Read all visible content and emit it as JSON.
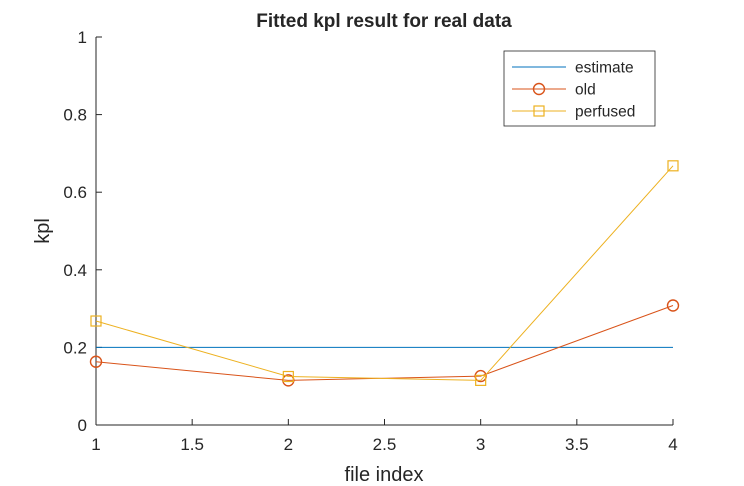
{
  "chart_data": {
    "type": "line",
    "title": "Fitted kpl result for real data",
    "xlabel": "file index",
    "ylabel": "kpl",
    "xlim": [
      1,
      4
    ],
    "ylim": [
      0,
      1
    ],
    "x_ticks": [
      1,
      1.5,
      2,
      2.5,
      3,
      3.5,
      4
    ],
    "x_tick_labels": [
      "1",
      "1.5",
      "2",
      "2.5",
      "3",
      "3.5",
      "4"
    ],
    "y_ticks": [
      0,
      0.2,
      0.4,
      0.6,
      0.8,
      1
    ],
    "y_tick_labels": [
      "0",
      "0.2",
      "0.4",
      "0.6",
      "0.8",
      "1"
    ],
    "grid": false,
    "legend_position": "top-right",
    "x": [
      1,
      2,
      3,
      4
    ],
    "series": [
      {
        "name": "estimate",
        "color": "#0072BD",
        "marker": "none",
        "values": [
          0.2,
          0.2,
          0.2,
          0.2
        ]
      },
      {
        "name": "old",
        "color": "#D95319",
        "marker": "circle",
        "values": [
          0.163,
          0.115,
          0.126,
          0.308
        ]
      },
      {
        "name": "perfused",
        "color": "#EDB120",
        "marker": "square",
        "values": [
          0.268,
          0.125,
          0.115,
          0.668
        ]
      }
    ]
  }
}
